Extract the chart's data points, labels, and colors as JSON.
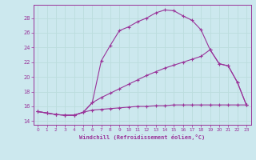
{
  "xlabel": "Windchill (Refroidissement éolien,°C)",
  "bg_color": "#cce8ee",
  "line_color": "#993399",
  "grid_color": "#bbdddd",
  "xlim": [
    -0.5,
    23.5
  ],
  "ylim": [
    13.5,
    29.8
  ],
  "yticks": [
    14,
    16,
    18,
    20,
    22,
    24,
    26,
    28
  ],
  "xticks": [
    0,
    1,
    2,
    3,
    4,
    5,
    6,
    7,
    8,
    9,
    10,
    11,
    12,
    13,
    14,
    15,
    16,
    17,
    18,
    19,
    20,
    21,
    22,
    23
  ],
  "line1_x": [
    0,
    1,
    2,
    3,
    4,
    5,
    6,
    7,
    8,
    9,
    10,
    11,
    12,
    13,
    14,
    15,
    16,
    17,
    18,
    19,
    20,
    21,
    22,
    23
  ],
  "line1_y": [
    15.3,
    15.1,
    14.9,
    14.8,
    14.8,
    15.2,
    15.5,
    15.6,
    15.7,
    15.8,
    15.9,
    16.0,
    16.0,
    16.1,
    16.1,
    16.2,
    16.2,
    16.2,
    16.2,
    16.2,
    16.2,
    16.2,
    16.2,
    16.2
  ],
  "line2_x": [
    0,
    1,
    2,
    3,
    4,
    5,
    6,
    7,
    8,
    9,
    10,
    11,
    12,
    13,
    14,
    15,
    16,
    17,
    18,
    19,
    20,
    21,
    22,
    23
  ],
  "line2_y": [
    15.3,
    15.1,
    14.9,
    14.8,
    14.8,
    15.2,
    16.5,
    22.2,
    24.3,
    26.3,
    26.8,
    27.5,
    28.0,
    28.7,
    29.1,
    29.0,
    28.3,
    27.7,
    26.4,
    23.7,
    21.8,
    21.5,
    19.3,
    16.2
  ],
  "line3_x": [
    0,
    1,
    2,
    3,
    4,
    5,
    6,
    7,
    8,
    9,
    10,
    11,
    12,
    13,
    14,
    15,
    16,
    17,
    18,
    19,
    20,
    21,
    22,
    23
  ],
  "line3_y": [
    15.3,
    15.1,
    14.9,
    14.8,
    14.8,
    15.2,
    16.5,
    17.2,
    17.8,
    18.4,
    19.0,
    19.6,
    20.2,
    20.7,
    21.2,
    21.6,
    22.0,
    22.4,
    22.8,
    23.7,
    21.8,
    21.5,
    19.3,
    16.2
  ]
}
